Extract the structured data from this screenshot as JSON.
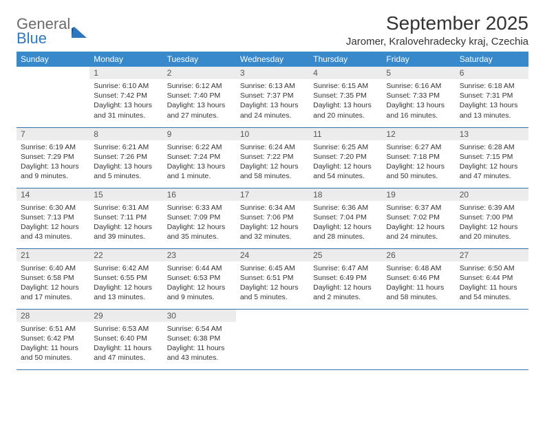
{
  "logo": {
    "word1": "General",
    "word2": "Blue"
  },
  "title": "September 2025",
  "location": "Jaromer, Kralovehradecky kraj, Czechia",
  "colors": {
    "header_bg": "#3789cc",
    "header_text": "#ffffff",
    "daynum_bg": "#ececec",
    "rule": "#3071a9",
    "logo_gray": "#6a6a6a",
    "logo_blue": "#2f78bf"
  },
  "weekdays": [
    "Sunday",
    "Monday",
    "Tuesday",
    "Wednesday",
    "Thursday",
    "Friday",
    "Saturday"
  ],
  "weeks": [
    [
      null,
      {
        "n": "1",
        "sr": "Sunrise: 6:10 AM",
        "ss": "Sunset: 7:42 PM",
        "dl": "Daylight: 13 hours and 31 minutes."
      },
      {
        "n": "2",
        "sr": "Sunrise: 6:12 AM",
        "ss": "Sunset: 7:40 PM",
        "dl": "Daylight: 13 hours and 27 minutes."
      },
      {
        "n": "3",
        "sr": "Sunrise: 6:13 AM",
        "ss": "Sunset: 7:37 PM",
        "dl": "Daylight: 13 hours and 24 minutes."
      },
      {
        "n": "4",
        "sr": "Sunrise: 6:15 AM",
        "ss": "Sunset: 7:35 PM",
        "dl": "Daylight: 13 hours and 20 minutes."
      },
      {
        "n": "5",
        "sr": "Sunrise: 6:16 AM",
        "ss": "Sunset: 7:33 PM",
        "dl": "Daylight: 13 hours and 16 minutes."
      },
      {
        "n": "6",
        "sr": "Sunrise: 6:18 AM",
        "ss": "Sunset: 7:31 PM",
        "dl": "Daylight: 13 hours and 13 minutes."
      }
    ],
    [
      {
        "n": "7",
        "sr": "Sunrise: 6:19 AM",
        "ss": "Sunset: 7:29 PM",
        "dl": "Daylight: 13 hours and 9 minutes."
      },
      {
        "n": "8",
        "sr": "Sunrise: 6:21 AM",
        "ss": "Sunset: 7:26 PM",
        "dl": "Daylight: 13 hours and 5 minutes."
      },
      {
        "n": "9",
        "sr": "Sunrise: 6:22 AM",
        "ss": "Sunset: 7:24 PM",
        "dl": "Daylight: 13 hours and 1 minute."
      },
      {
        "n": "10",
        "sr": "Sunrise: 6:24 AM",
        "ss": "Sunset: 7:22 PM",
        "dl": "Daylight: 12 hours and 58 minutes."
      },
      {
        "n": "11",
        "sr": "Sunrise: 6:25 AM",
        "ss": "Sunset: 7:20 PM",
        "dl": "Daylight: 12 hours and 54 minutes."
      },
      {
        "n": "12",
        "sr": "Sunrise: 6:27 AM",
        "ss": "Sunset: 7:18 PM",
        "dl": "Daylight: 12 hours and 50 minutes."
      },
      {
        "n": "13",
        "sr": "Sunrise: 6:28 AM",
        "ss": "Sunset: 7:15 PM",
        "dl": "Daylight: 12 hours and 47 minutes."
      }
    ],
    [
      {
        "n": "14",
        "sr": "Sunrise: 6:30 AM",
        "ss": "Sunset: 7:13 PM",
        "dl": "Daylight: 12 hours and 43 minutes."
      },
      {
        "n": "15",
        "sr": "Sunrise: 6:31 AM",
        "ss": "Sunset: 7:11 PM",
        "dl": "Daylight: 12 hours and 39 minutes."
      },
      {
        "n": "16",
        "sr": "Sunrise: 6:33 AM",
        "ss": "Sunset: 7:09 PM",
        "dl": "Daylight: 12 hours and 35 minutes."
      },
      {
        "n": "17",
        "sr": "Sunrise: 6:34 AM",
        "ss": "Sunset: 7:06 PM",
        "dl": "Daylight: 12 hours and 32 minutes."
      },
      {
        "n": "18",
        "sr": "Sunrise: 6:36 AM",
        "ss": "Sunset: 7:04 PM",
        "dl": "Daylight: 12 hours and 28 minutes."
      },
      {
        "n": "19",
        "sr": "Sunrise: 6:37 AM",
        "ss": "Sunset: 7:02 PM",
        "dl": "Daylight: 12 hours and 24 minutes."
      },
      {
        "n": "20",
        "sr": "Sunrise: 6:39 AM",
        "ss": "Sunset: 7:00 PM",
        "dl": "Daylight: 12 hours and 20 minutes."
      }
    ],
    [
      {
        "n": "21",
        "sr": "Sunrise: 6:40 AM",
        "ss": "Sunset: 6:58 PM",
        "dl": "Daylight: 12 hours and 17 minutes."
      },
      {
        "n": "22",
        "sr": "Sunrise: 6:42 AM",
        "ss": "Sunset: 6:55 PM",
        "dl": "Daylight: 12 hours and 13 minutes."
      },
      {
        "n": "23",
        "sr": "Sunrise: 6:44 AM",
        "ss": "Sunset: 6:53 PM",
        "dl": "Daylight: 12 hours and 9 minutes."
      },
      {
        "n": "24",
        "sr": "Sunrise: 6:45 AM",
        "ss": "Sunset: 6:51 PM",
        "dl": "Daylight: 12 hours and 5 minutes."
      },
      {
        "n": "25",
        "sr": "Sunrise: 6:47 AM",
        "ss": "Sunset: 6:49 PM",
        "dl": "Daylight: 12 hours and 2 minutes."
      },
      {
        "n": "26",
        "sr": "Sunrise: 6:48 AM",
        "ss": "Sunset: 6:46 PM",
        "dl": "Daylight: 11 hours and 58 minutes."
      },
      {
        "n": "27",
        "sr": "Sunrise: 6:50 AM",
        "ss": "Sunset: 6:44 PM",
        "dl": "Daylight: 11 hours and 54 minutes."
      }
    ],
    [
      {
        "n": "28",
        "sr": "Sunrise: 6:51 AM",
        "ss": "Sunset: 6:42 PM",
        "dl": "Daylight: 11 hours and 50 minutes."
      },
      {
        "n": "29",
        "sr": "Sunrise: 6:53 AM",
        "ss": "Sunset: 6:40 PM",
        "dl": "Daylight: 11 hours and 47 minutes."
      },
      {
        "n": "30",
        "sr": "Sunrise: 6:54 AM",
        "ss": "Sunset: 6:38 PM",
        "dl": "Daylight: 11 hours and 43 minutes."
      },
      null,
      null,
      null,
      null
    ]
  ]
}
